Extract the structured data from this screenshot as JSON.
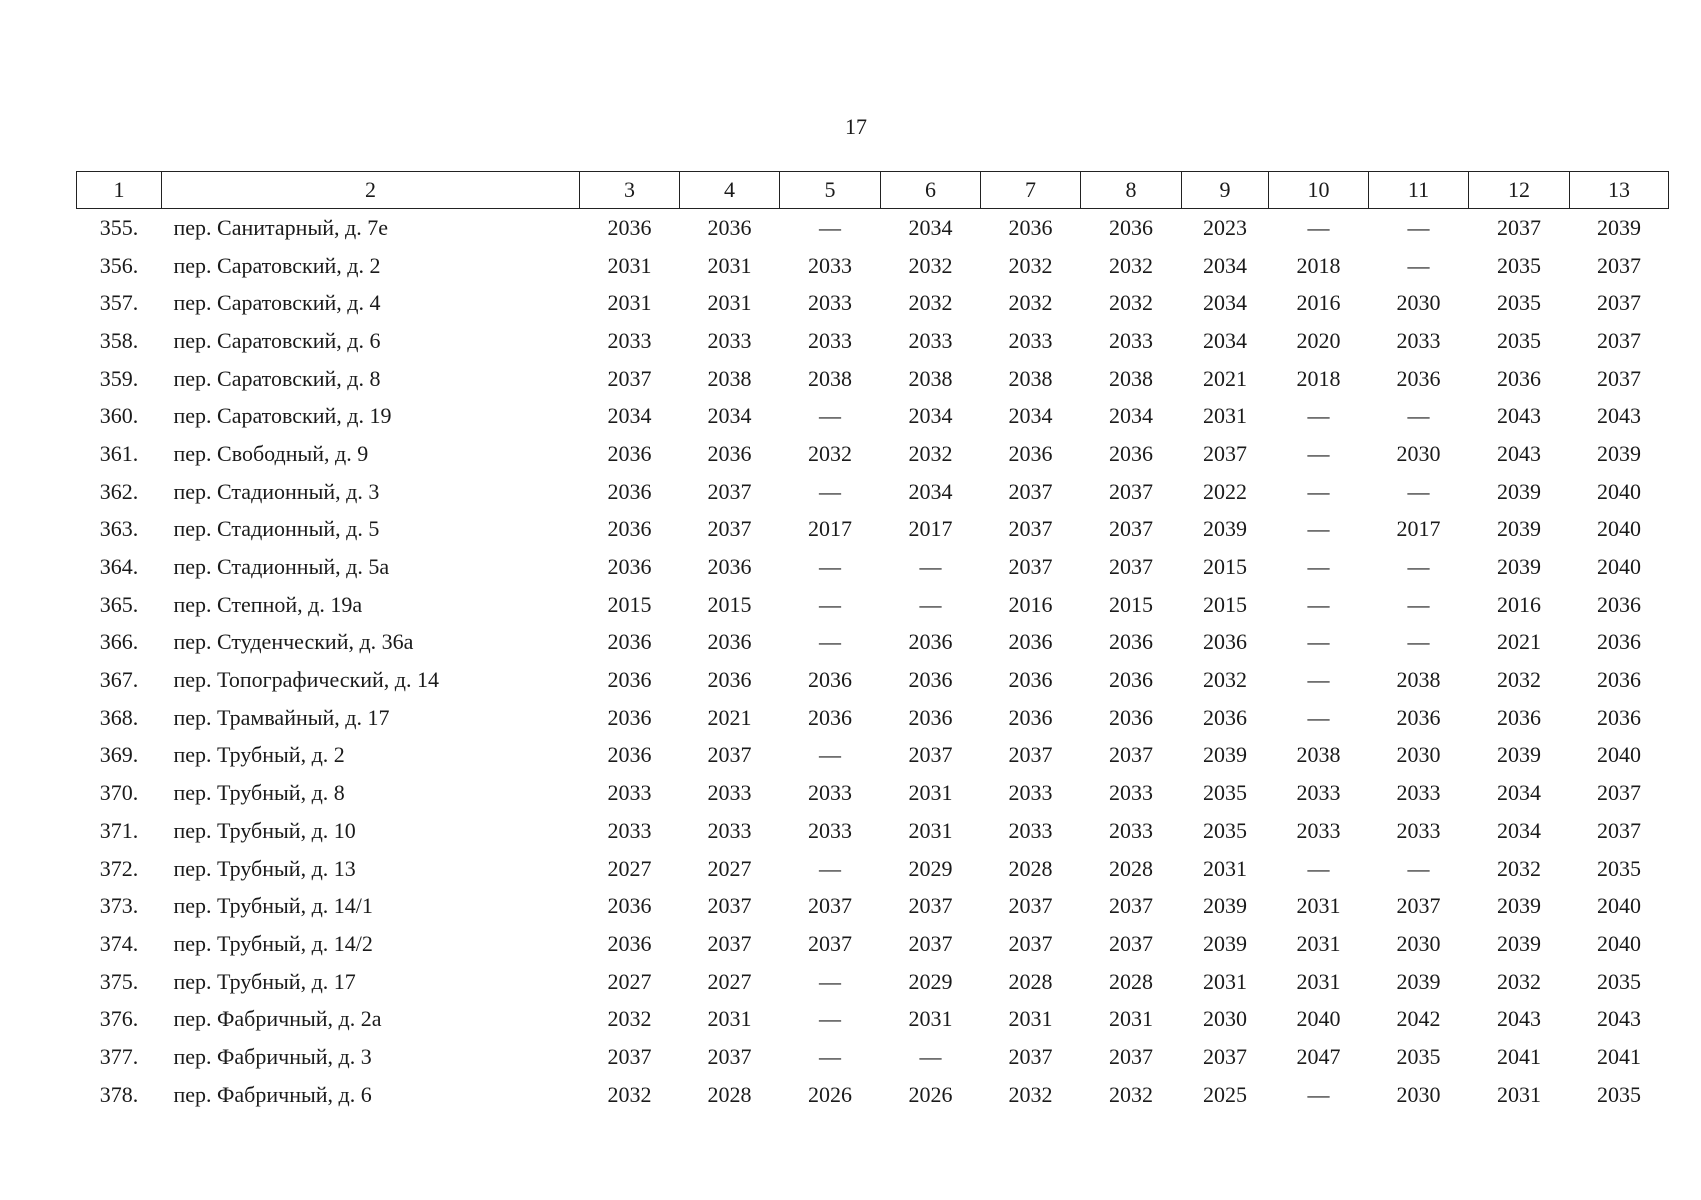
{
  "page_number": "17",
  "table": {
    "header": [
      "1",
      "2",
      "3",
      "4",
      "5",
      "6",
      "7",
      "8",
      "9",
      "10",
      "11",
      "12",
      "13"
    ],
    "rows": [
      [
        "355.",
        "пер. Санитарный, д. 7е",
        "2036",
        "2036",
        "—",
        "2034",
        "2036",
        "2036",
        "2023",
        "—",
        "—",
        "2037",
        "2039"
      ],
      [
        "356.",
        "пер. Саратовский, д. 2",
        "2031",
        "2031",
        "2033",
        "2032",
        "2032",
        "2032",
        "2034",
        "2018",
        "—",
        "2035",
        "2037"
      ],
      [
        "357.",
        "пер. Саратовский, д. 4",
        "2031",
        "2031",
        "2033",
        "2032",
        "2032",
        "2032",
        "2034",
        "2016",
        "2030",
        "2035",
        "2037"
      ],
      [
        "358.",
        "пер. Саратовский, д. 6",
        "2033",
        "2033",
        "2033",
        "2033",
        "2033",
        "2033",
        "2034",
        "2020",
        "2033",
        "2035",
        "2037"
      ],
      [
        "359.",
        "пер. Саратовский, д. 8",
        "2037",
        "2038",
        "2038",
        "2038",
        "2038",
        "2038",
        "2021",
        "2018",
        "2036",
        "2036",
        "2037"
      ],
      [
        "360.",
        "пер. Саратовский, д. 19",
        "2034",
        "2034",
        "—",
        "2034",
        "2034",
        "2034",
        "2031",
        "—",
        "—",
        "2043",
        "2043"
      ],
      [
        "361.",
        "пер. Свободный, д. 9",
        "2036",
        "2036",
        "2032",
        "2032",
        "2036",
        "2036",
        "2037",
        "—",
        "2030",
        "2043",
        "2039"
      ],
      [
        "362.",
        "пер. Стадионный, д. 3",
        "2036",
        "2037",
        "—",
        "2034",
        "2037",
        "2037",
        "2022",
        "—",
        "—",
        "2039",
        "2040"
      ],
      [
        "363.",
        "пер. Стадионный, д. 5",
        "2036",
        "2037",
        "2017",
        "2017",
        "2037",
        "2037",
        "2039",
        "—",
        "2017",
        "2039",
        "2040"
      ],
      [
        "364.",
        "пер. Стадионный, д. 5а",
        "2036",
        "2036",
        "—",
        "—",
        "2037",
        "2037",
        "2015",
        "—",
        "—",
        "2039",
        "2040"
      ],
      [
        "365.",
        "пер. Степной, д. 19а",
        "2015",
        "2015",
        "—",
        "—",
        "2016",
        "2015",
        "2015",
        "—",
        "—",
        "2016",
        "2036"
      ],
      [
        "366.",
        "пер. Студенческий, д. 36а",
        "2036",
        "2036",
        "—",
        "2036",
        "2036",
        "2036",
        "2036",
        "—",
        "—",
        "2021",
        "2036"
      ],
      [
        "367.",
        "пер. Топографический, д. 14",
        "2036",
        "2036",
        "2036",
        "2036",
        "2036",
        "2036",
        "2032",
        "—",
        "2038",
        "2032",
        "2036"
      ],
      [
        "368.",
        "пер. Трамвайный, д. 17",
        "2036",
        "2021",
        "2036",
        "2036",
        "2036",
        "2036",
        "2036",
        "—",
        "2036",
        "2036",
        "2036"
      ],
      [
        "369.",
        "пер. Трубный, д. 2",
        "2036",
        "2037",
        "—",
        "2037",
        "2037",
        "2037",
        "2039",
        "2038",
        "2030",
        "2039",
        "2040"
      ],
      [
        "370.",
        "пер. Трубный, д. 8",
        "2033",
        "2033",
        "2033",
        "2031",
        "2033",
        "2033",
        "2035",
        "2033",
        "2033",
        "2034",
        "2037"
      ],
      [
        "371.",
        "пер. Трубный, д. 10",
        "2033",
        "2033",
        "2033",
        "2031",
        "2033",
        "2033",
        "2035",
        "2033",
        "2033",
        "2034",
        "2037"
      ],
      [
        "372.",
        "пер. Трубный, д. 13",
        "2027",
        "2027",
        "—",
        "2029",
        "2028",
        "2028",
        "2031",
        "—",
        "—",
        "2032",
        "2035"
      ],
      [
        "373.",
        "пер. Трубный, д. 14/1",
        "2036",
        "2037",
        "2037",
        "2037",
        "2037",
        "2037",
        "2039",
        "2031",
        "2037",
        "2039",
        "2040"
      ],
      [
        "374.",
        "пер. Трубный, д. 14/2",
        "2036",
        "2037",
        "2037",
        "2037",
        "2037",
        "2037",
        "2039",
        "2031",
        "2030",
        "2039",
        "2040"
      ],
      [
        "375.",
        "пер. Трубный, д. 17",
        "2027",
        "2027",
        "—",
        "2029",
        "2028",
        "2028",
        "2031",
        "2031",
        "2039",
        "2032",
        "2035"
      ],
      [
        "376.",
        "пер. Фабричный, д. 2а",
        "2032",
        "2031",
        "—",
        "2031",
        "2031",
        "2031",
        "2030",
        "2040",
        "2042",
        "2043",
        "2043"
      ],
      [
        "377.",
        "пер. Фабричный, д. 3",
        "2037",
        "2037",
        "—",
        "—",
        "2037",
        "2037",
        "2037",
        "2047",
        "2035",
        "2041",
        "2041"
      ],
      [
        "378.",
        "пер. Фабричный, д. 6",
        "2032",
        "2028",
        "2026",
        "2026",
        "2032",
        "2032",
        "2025",
        "—",
        "2030",
        "2031",
        "2035"
      ]
    ]
  }
}
